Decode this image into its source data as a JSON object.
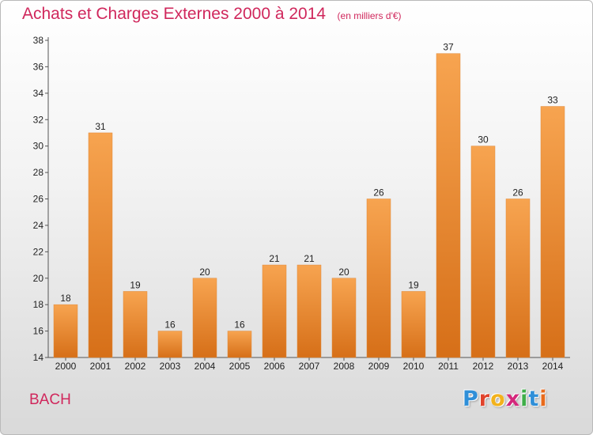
{
  "chart_data": {
    "type": "bar",
    "title": "Achats et Charges Externes 2000 à 2014",
    "subtitle": "(en milliers d'€)",
    "categories": [
      "2000",
      "2001",
      "2002",
      "2003",
      "2004",
      "2005",
      "2006",
      "2007",
      "2008",
      "2009",
      "2010",
      "2011",
      "2012",
      "2013",
      "2014"
    ],
    "values": [
      18,
      31,
      19,
      16,
      20,
      16,
      21,
      21,
      20,
      26,
      19,
      37,
      30,
      26,
      33
    ],
    "ylim": [
      14,
      38
    ],
    "yticks": [
      14,
      16,
      18,
      20,
      22,
      24,
      26,
      28,
      30,
      32,
      34,
      36,
      38
    ],
    "xlabel": "",
    "ylabel": "",
    "grid": false,
    "bar_color_top": "#f7a450",
    "bar_color_bottom": "#d66f18"
  },
  "footer": {
    "commune": "BACH"
  },
  "brand": {
    "letters": [
      {
        "char": "P",
        "color": "#2f8fd8"
      },
      {
        "char": "r",
        "color": "#e0432c"
      },
      {
        "char": "o",
        "color": "#f2b21c"
      },
      {
        "char": "x",
        "color": "#d4287c"
      },
      {
        "char": "i",
        "color": "#3fae49"
      },
      {
        "char": "t",
        "color": "#2f8fd8"
      },
      {
        "char": "i",
        "color": "#e86a1c"
      }
    ]
  },
  "colors": {
    "title": "#d0275c",
    "axis": "#555555",
    "tick_text": "#222222"
  }
}
